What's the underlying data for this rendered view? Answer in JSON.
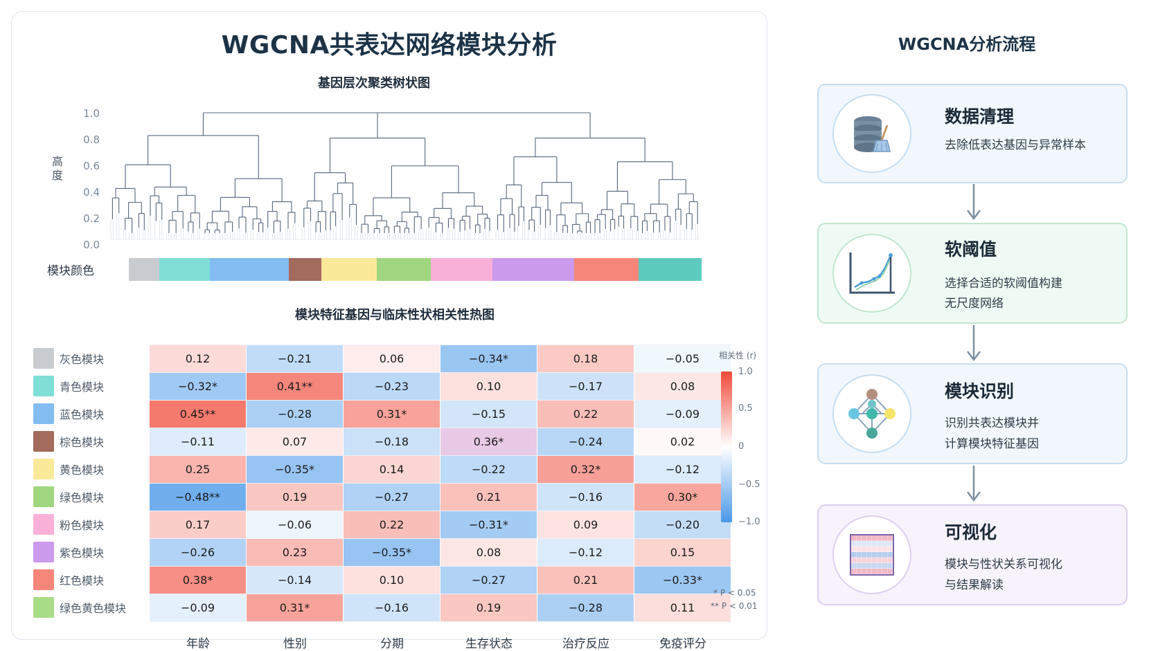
{
  "main_title": "WGCNA共表达网络模块分析",
  "dendrogram": {
    "title": "基因层次聚类树状图",
    "ylabel": "高度",
    "yticks": [
      "1.0",
      "0.8",
      "0.6",
      "0.4",
      "0.2",
      "0.0"
    ],
    "strip_label": "模块颜色"
  },
  "module_strip": [
    {
      "color": "#c8ccd0",
      "fraction": 0.053
    },
    {
      "color": "#7fdfd6",
      "fraction": 0.088
    },
    {
      "color": "#84bdf2",
      "fraction": 0.138
    },
    {
      "color": "#a36a5e",
      "fraction": 0.057
    },
    {
      "color": "#fbe99a",
      "fraction": 0.097
    },
    {
      "color": "#9fd67f",
      "fraction": 0.094
    },
    {
      "color": "#f9b0d8",
      "fraction": 0.108
    },
    {
      "color": "#cc9aec",
      "fraction": 0.143
    },
    {
      "color": "#f6867a",
      "fraction": 0.112
    },
    {
      "color": "#5ccbbe",
      "fraction": 0.11
    }
  ],
  "heatmap": {
    "title": "模块特征基因与临床性状相关性热图",
    "rows": [
      {
        "label": "灰色模块",
        "color": "#c8ccd0"
      },
      {
        "label": "青色模块",
        "color": "#7fdfd6"
      },
      {
        "label": "蓝色模块",
        "color": "#84bdf2"
      },
      {
        "label": "棕色模块",
        "color": "#a36a5e"
      },
      {
        "label": "黄色模块",
        "color": "#fbe99a"
      },
      {
        "label": "绿色模块",
        "color": "#9fd67f"
      },
      {
        "label": "粉色模块",
        "color": "#f9b0d8"
      },
      {
        "label": "紫色模块",
        "color": "#cc9aec"
      },
      {
        "label": "红色模块",
        "color": "#f6867a"
      },
      {
        "label": "绿色黄色模块",
        "color": "#a8dc86"
      }
    ],
    "columns": [
      "年龄",
      "性别",
      "分期",
      "生存状态",
      "治疗反应",
      "免疫评分"
    ],
    "values": [
      [
        0.12,
        -0.21,
        0.06,
        -0.34,
        0.18,
        -0.05
      ],
      [
        -0.32,
        0.41,
        -0.23,
        0.1,
        -0.17,
        0.08
      ],
      [
        0.45,
        -0.28,
        0.31,
        -0.15,
        0.22,
        -0.09
      ],
      [
        -0.11,
        0.07,
        -0.18,
        0.36,
        -0.24,
        0.02
      ],
      [
        0.25,
        -0.35,
        0.14,
        -0.22,
        0.32,
        -0.12
      ],
      [
        -0.48,
        0.19,
        -0.27,
        0.21,
        -0.16,
        0.3
      ],
      [
        0.17,
        -0.06,
        0.22,
        -0.31,
        0.09,
        -0.2
      ],
      [
        -0.26,
        0.23,
        -0.35,
        0.08,
        -0.12,
        0.15
      ],
      [
        0.38,
        -0.14,
        0.1,
        -0.27,
        0.21,
        -0.33
      ],
      [
        -0.09,
        0.31,
        -0.16,
        0.19,
        -0.28,
        0.11
      ]
    ],
    "labels": [
      [
        "0.12",
        "−0.21",
        "0.06",
        "−0.34*",
        "0.18",
        "−0.05"
      ],
      [
        "−0.32*",
        "0.41**",
        "−0.23",
        "0.10",
        "−0.17",
        "0.08"
      ],
      [
        "0.45**",
        "−0.28",
        "0.31*",
        "−0.15",
        "0.22",
        "−0.09"
      ],
      [
        "−0.11",
        "0.07",
        "−0.18",
        "0.36*",
        "−0.24",
        "0.02"
      ],
      [
        "0.25",
        "−0.35*",
        "0.14",
        "−0.22",
        "0.32*",
        "−0.12"
      ],
      [
        "−0.48**",
        "0.19",
        "−0.27",
        "0.21",
        "−0.16",
        "0.30*"
      ],
      [
        "0.17",
        "−0.06",
        "0.22",
        "−0.31*",
        "0.09",
        "−0.20"
      ],
      [
        "−0.26",
        "0.23",
        "−0.35*",
        "0.08",
        "−0.12",
        "0.15"
      ],
      [
        "0.38*",
        "−0.14",
        "0.10",
        "−0.27",
        "0.21",
        "−0.33*"
      ],
      [
        "−0.09",
        "0.31*",
        "−0.16",
        "0.19",
        "−0.28",
        "0.11"
      ]
    ],
    "special_cells": [
      {
        "row": 3,
        "col": 3,
        "color": "#e8c9e6"
      }
    ],
    "colorbar": {
      "title": "相关性 (r)",
      "ticks": [
        "1.0",
        "0.5",
        "0",
        "−0.5",
        "−1.0"
      ],
      "positive_color": "#f04a3a",
      "negative_color": "#4a98e8"
    },
    "sig_notes": [
      "* P < 0.05",
      "** P < 0.01"
    ]
  },
  "workflow": {
    "title": "WGCNA分析流程",
    "steps": [
      {
        "heading": "数据清理",
        "desc": [
          "去除低表达基因与异常样本"
        ],
        "icon": "database-cleaning-icon",
        "bg": "#f1f7fd",
        "border": "#c4ddf2"
      },
      {
        "heading": "软阈值",
        "desc": [
          "选择合适的软阈值构建",
          "无尺度网络"
        ],
        "icon": "soft-threshold-chart-icon",
        "bg": "#f0faf4",
        "border": "#c0e6cf"
      },
      {
        "heading": "模块识别",
        "desc": [
          "识别共表达模块并",
          "计算模块特征基因"
        ],
        "icon": "network-module-icon",
        "bg": "#f1f7fd",
        "border": "#c4ddf2"
      },
      {
        "heading": "可视化",
        "desc": [
          "模块与性状关系可视化",
          "与结果解读"
        ],
        "icon": "heatmap-icon",
        "bg": "#f6f3fc",
        "border": "#dccff0"
      }
    ]
  }
}
